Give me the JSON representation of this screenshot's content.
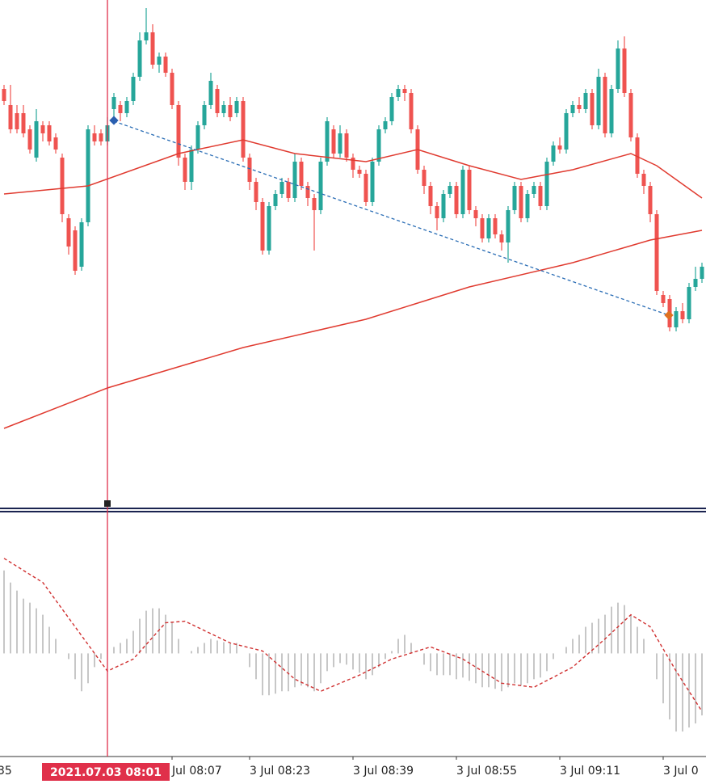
{
  "chart_data": [
    {
      "type": "candlestick",
      "xlim": [
        -0.625,
        108.625
      ],
      "ylim": [
        0,
        630
      ],
      "up_color": "#26a69a",
      "down_color": "#ef5350",
      "ohlc": [
        [
          520,
          525,
          500,
          505
        ],
        [
          500,
          525,
          465,
          470
        ],
        [
          490,
          500,
          465,
          470
        ],
        [
          490,
          500,
          460,
          465
        ],
        [
          470,
          475,
          440,
          445
        ],
        [
          435,
          495,
          430,
          480
        ],
        [
          475,
          480,
          455,
          465
        ],
        [
          475,
          480,
          450,
          455
        ],
        [
          460,
          465,
          440,
          445
        ],
        [
          435,
          440,
          355,
          365
        ],
        [
          360,
          365,
          315,
          325
        ],
        [
          345,
          350,
          290,
          295
        ],
        [
          300,
          360,
          295,
          355
        ],
        [
          355,
          475,
          350,
          470
        ],
        [
          465,
          475,
          450,
          455
        ],
        [
          465,
          470,
          450,
          455
        ],
        [
          455,
          485,
          450,
          475
        ],
        [
          495,
          515,
          480,
          510
        ],
        [
          500,
          505,
          480,
          490
        ],
        [
          490,
          510,
          485,
          505
        ],
        [
          505,
          540,
          500,
          535
        ],
        [
          535,
          590,
          530,
          580
        ],
        [
          580,
          620,
          575,
          590
        ],
        [
          590,
          600,
          545,
          550
        ],
        [
          550,
          565,
          540,
          560
        ],
        [
          560,
          565,
          535,
          540
        ],
        [
          540,
          545,
          495,
          500
        ],
        [
          500,
          505,
          425,
          435
        ],
        [
          435,
          440,
          395,
          405
        ],
        [
          405,
          450,
          395,
          445
        ],
        [
          445,
          480,
          440,
          475
        ],
        [
          475,
          505,
          470,
          500
        ],
        [
          500,
          540,
          495,
          530
        ],
        [
          520,
          525,
          485,
          490
        ],
        [
          490,
          505,
          485,
          500
        ],
        [
          500,
          510,
          480,
          485
        ],
        [
          490,
          510,
          485,
          505
        ],
        [
          505,
          510,
          430,
          435
        ],
        [
          435,
          440,
          395,
          405
        ],
        [
          405,
          410,
          370,
          380
        ],
        [
          380,
          385,
          315,
          320
        ],
        [
          320,
          380,
          315,
          375
        ],
        [
          375,
          395,
          370,
          390
        ],
        [
          390,
          410,
          385,
          405
        ],
        [
          405,
          410,
          380,
          385
        ],
        [
          385,
          440,
          380,
          430
        ],
        [
          430,
          435,
          395,
          400
        ],
        [
          400,
          405,
          375,
          385
        ],
        [
          385,
          390,
          320,
          370
        ],
        [
          370,
          435,
          365,
          430
        ],
        [
          430,
          485,
          425,
          480
        ],
        [
          470,
          475,
          435,
          440
        ],
        [
          440,
          475,
          435,
          465
        ],
        [
          465,
          470,
          430,
          435
        ],
        [
          435,
          440,
          410,
          420
        ],
        [
          420,
          425,
          410,
          415
        ],
        [
          415,
          420,
          375,
          380
        ],
        [
          380,
          435,
          375,
          430
        ],
        [
          430,
          475,
          425,
          470
        ],
        [
          470,
          485,
          465,
          480
        ],
        [
          480,
          515,
          475,
          510
        ],
        [
          510,
          525,
          505,
          520
        ],
        [
          520,
          525,
          505,
          515
        ],
        [
          515,
          520,
          465,
          470
        ],
        [
          470,
          475,
          415,
          420
        ],
        [
          420,
          425,
          390,
          400
        ],
        [
          400,
          405,
          365,
          375
        ],
        [
          375,
          380,
          345,
          360
        ],
        [
          360,
          395,
          355,
          390
        ],
        [
          390,
          405,
          385,
          400
        ],
        [
          400,
          405,
          360,
          365
        ],
        [
          365,
          425,
          360,
          420
        ],
        [
          420,
          425,
          365,
          370
        ],
        [
          370,
          375,
          350,
          360
        ],
        [
          360,
          365,
          330,
          335
        ],
        [
          335,
          365,
          330,
          360
        ],
        [
          360,
          365,
          335,
          340
        ],
        [
          340,
          345,
          320,
          330
        ],
        [
          330,
          375,
          305,
          370
        ],
        [
          370,
          405,
          365,
          400
        ],
        [
          400,
          405,
          355,
          360
        ],
        [
          360,
          395,
          355,
          390
        ],
        [
          390,
          405,
          385,
          400
        ],
        [
          400,
          405,
          370,
          375
        ],
        [
          375,
          435,
          370,
          430
        ],
        [
          430,
          455,
          425,
          450
        ],
        [
          450,
          460,
          440,
          445
        ],
        [
          445,
          495,
          440,
          490
        ],
        [
          490,
          505,
          485,
          500
        ],
        [
          500,
          510,
          490,
          495
        ],
        [
          495,
          520,
          490,
          515
        ],
        [
          515,
          520,
          470,
          475
        ],
        [
          475,
          545,
          470,
          535
        ],
        [
          535,
          540,
          460,
          465
        ],
        [
          465,
          525,
          460,
          520
        ],
        [
          520,
          580,
          515,
          570
        ],
        [
          570,
          585,
          510,
          515
        ],
        [
          515,
          520,
          455,
          460
        ],
        [
          460,
          465,
          410,
          415
        ],
        [
          415,
          420,
          390,
          400
        ],
        [
          400,
          405,
          355,
          365
        ],
        [
          365,
          370,
          265,
          270
        ],
        [
          265,
          270,
          250,
          255
        ],
        [
          260,
          265,
          220,
          225
        ],
        [
          225,
          250,
          220,
          245
        ],
        [
          245,
          255,
          230,
          235
        ],
        [
          235,
          280,
          230,
          275
        ],
        [
          275,
          300,
          270,
          285
        ],
        [
          285,
          305,
          280,
          300
        ]
      ],
      "lines": [
        {
          "color": "#e03a2f",
          "x": [
            0,
            13,
            27,
            37,
            45,
            56,
            64,
            72,
            80,
            88,
            97,
            101,
            108
          ],
          "values": [
            390,
            400,
            440,
            457,
            440,
            430,
            445,
            425,
            408,
            420,
            440,
            425,
            385
          ]
        },
        {
          "color": "#e03a2f",
          "x": [
            0,
            16,
            37,
            56,
            72,
            88,
            100,
            108
          ],
          "values": [
            100,
            150,
            200,
            235,
            275,
            305,
            333,
            345
          ]
        }
      ],
      "xticks": [
        {
          "value": -1,
          "label": "35"
        },
        {
          "value": 26,
          "label": "Jul 08:07"
        },
        {
          "value": 38,
          "label": "3 Jul 08:23"
        },
        {
          "value": 54,
          "label": "3 Jul 08:39"
        },
        {
          "value": 70,
          "label": "3 Jul 08:55"
        },
        {
          "value": 86,
          "label": "3 Jul 09:11"
        },
        {
          "value": 102,
          "label": "3 Jul 0"
        }
      ],
      "cursor": {
        "x": 16,
        "label": "2021.07.03 08:01"
      }
    },
    {
      "type": "macd",
      "xlim": [
        -0.625,
        108.625
      ],
      "ylim": [
        -127,
        175
      ],
      "histogram": {
        "color": "#b4b4b4",
        "values": [
          103,
          88,
          78,
          68,
          63,
          56,
          48,
          33,
          18,
          0,
          -7,
          -32,
          -47,
          -37,
          -17,
          -7,
          0,
          8,
          13,
          18,
          28,
          43,
          53,
          56,
          56,
          48,
          38,
          18,
          0,
          3,
          8,
          13,
          18,
          16,
          14,
          12,
          13,
          0,
          -17,
          -32,
          -52,
          -52,
          -50,
          -47,
          -47,
          -42,
          -40,
          -42,
          -47,
          -37,
          -22,
          -17,
          -12,
          -14,
          -20,
          -24,
          -32,
          -27,
          -17,
          -7,
          3,
          18,
          23,
          13,
          0,
          -14,
          -22,
          -27,
          -27,
          -27,
          -32,
          -30,
          -34,
          -37,
          -42,
          -42,
          -44,
          -47,
          -42,
          -37,
          -40,
          -37,
          -32,
          -30,
          -22,
          -7,
          0,
          8,
          18,
          23,
          33,
          38,
          43,
          48,
          58,
          63,
          60,
          48,
          33,
          18,
          0,
          -32,
          -62,
          -82,
          -97,
          -97,
          -92,
          -87,
          -77
        ]
      },
      "signal": {
        "color": "#d03030",
        "x": [
          0,
          6,
          11,
          16,
          20,
          25,
          28,
          35,
          40,
          45,
          49,
          55,
          60,
          66,
          71,
          77,
          82,
          88,
          93,
          97,
          100,
          104,
          108
        ],
        "values": [
          118,
          88,
          33,
          -22,
          -7,
          38,
          40,
          13,
          3,
          -32,
          -47,
          -27,
          -7,
          8,
          -7,
          -37,
          -42,
          -17,
          18,
          48,
          33,
          -22,
          -72
        ]
      }
    }
  ]
}
